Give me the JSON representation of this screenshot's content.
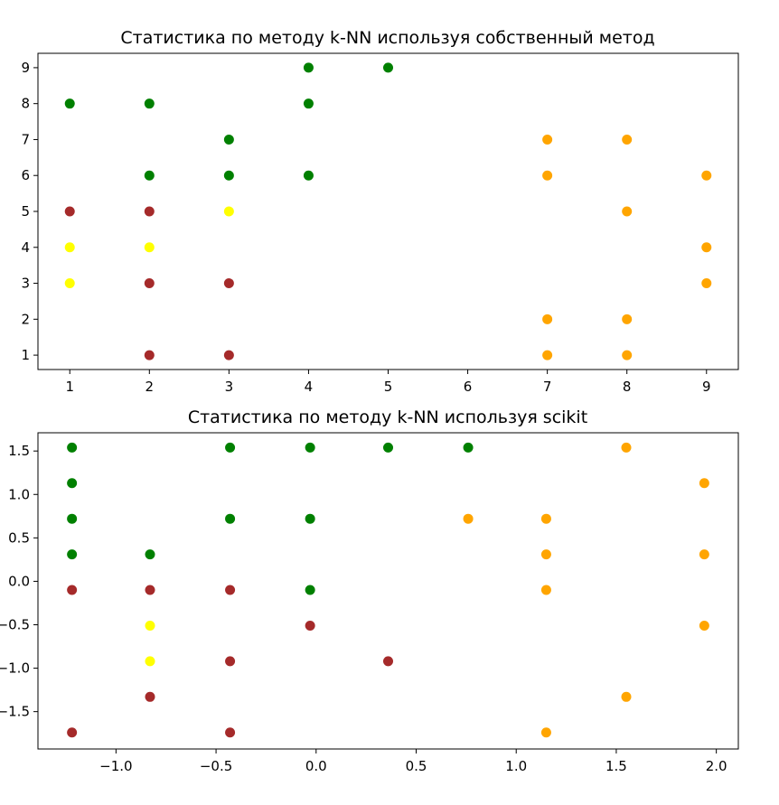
{
  "chart_data": [
    {
      "type": "scatter",
      "title": "Статистика по методу k-NN используя собственный метод",
      "xlabel": "",
      "ylabel": "",
      "xlim": [
        0.6,
        9.4
      ],
      "ylim": [
        0.6,
        9.4
      ],
      "x_ticks": [
        "1",
        "2",
        "3",
        "4",
        "5",
        "6",
        "7",
        "8",
        "9"
      ],
      "y_ticks": [
        "1",
        "2",
        "3",
        "4",
        "5",
        "6",
        "7",
        "8",
        "9"
      ],
      "grid": false,
      "points": [
        {
          "x": 1,
          "y": 8,
          "color": "#008000"
        },
        {
          "x": 2,
          "y": 8,
          "color": "#008000"
        },
        {
          "x": 2,
          "y": 6,
          "color": "#008000"
        },
        {
          "x": 3,
          "y": 7,
          "color": "#008000"
        },
        {
          "x": 3,
          "y": 6,
          "color": "#008000"
        },
        {
          "x": 4,
          "y": 9,
          "color": "#008000"
        },
        {
          "x": 4,
          "y": 8,
          "color": "#008000"
        },
        {
          "x": 4,
          "y": 6,
          "color": "#008000"
        },
        {
          "x": 5,
          "y": 9,
          "color": "#008000"
        },
        {
          "x": 1,
          "y": 5,
          "color": "#a52a2a"
        },
        {
          "x": 2,
          "y": 5,
          "color": "#a52a2a"
        },
        {
          "x": 2,
          "y": 3,
          "color": "#a52a2a"
        },
        {
          "x": 2,
          "y": 1,
          "color": "#a52a2a"
        },
        {
          "x": 3,
          "y": 3,
          "color": "#a52a2a"
        },
        {
          "x": 3,
          "y": 1,
          "color": "#a52a2a"
        },
        {
          "x": 1,
          "y": 4,
          "color": "#ffff00"
        },
        {
          "x": 1,
          "y": 3,
          "color": "#ffff00"
        },
        {
          "x": 2,
          "y": 4,
          "color": "#ffff00"
        },
        {
          "x": 3,
          "y": 5,
          "color": "#ffff00"
        },
        {
          "x": 7,
          "y": 7,
          "color": "#ffa500"
        },
        {
          "x": 7,
          "y": 6,
          "color": "#ffa500"
        },
        {
          "x": 7,
          "y": 2,
          "color": "#ffa500"
        },
        {
          "x": 7,
          "y": 1,
          "color": "#ffa500"
        },
        {
          "x": 8,
          "y": 7,
          "color": "#ffa500"
        },
        {
          "x": 8,
          "y": 5,
          "color": "#ffa500"
        },
        {
          "x": 8,
          "y": 2,
          "color": "#ffa500"
        },
        {
          "x": 8,
          "y": 1,
          "color": "#ffa500"
        },
        {
          "x": 9,
          "y": 6,
          "color": "#ffa500"
        },
        {
          "x": 9,
          "y": 4,
          "color": "#ffa500"
        },
        {
          "x": 9,
          "y": 3,
          "color": "#ffa500"
        }
      ]
    },
    {
      "type": "scatter",
      "title": "Статистика по методу k-NN используя scikit",
      "xlabel": "",
      "ylabel": "",
      "xlim": [
        -1.39,
        2.11
      ],
      "ylim": [
        -1.93,
        1.71
      ],
      "x_ticks": [
        "−1.0",
        "−0.5",
        "0.0",
        "0.5",
        "1.0",
        "1.5",
        "2.0"
      ],
      "y_ticks": [
        "1.5",
        "1.0",
        "0.5",
        "0.0",
        "−0.5",
        "−1.0",
        "−1.5"
      ],
      "grid": false,
      "points": [
        {
          "x": -1.22,
          "y": 1.54,
          "color": "#008000"
        },
        {
          "x": -1.22,
          "y": 1.13,
          "color": "#008000"
        },
        {
          "x": -1.22,
          "y": 0.72,
          "color": "#008000"
        },
        {
          "x": -1.22,
          "y": 0.31,
          "color": "#008000"
        },
        {
          "x": -0.83,
          "y": 0.31,
          "color": "#008000"
        },
        {
          "x": -0.43,
          "y": 1.54,
          "color": "#008000"
        },
        {
          "x": -0.43,
          "y": 0.72,
          "color": "#008000"
        },
        {
          "x": -0.03,
          "y": 1.54,
          "color": "#008000"
        },
        {
          "x": -0.03,
          "y": 0.72,
          "color": "#008000"
        },
        {
          "x": -0.03,
          "y": -0.1,
          "color": "#008000"
        },
        {
          "x": 0.36,
          "y": 1.54,
          "color": "#008000"
        },
        {
          "x": 0.76,
          "y": 1.54,
          "color": "#008000"
        },
        {
          "x": -1.22,
          "y": -0.1,
          "color": "#a52a2a"
        },
        {
          "x": -1.22,
          "y": -1.74,
          "color": "#a52a2a"
        },
        {
          "x": -0.83,
          "y": -0.1,
          "color": "#a52a2a"
        },
        {
          "x": -0.83,
          "y": -1.33,
          "color": "#a52a2a"
        },
        {
          "x": -0.43,
          "y": -0.1,
          "color": "#a52a2a"
        },
        {
          "x": -0.43,
          "y": -0.92,
          "color": "#a52a2a"
        },
        {
          "x": -0.43,
          "y": -1.74,
          "color": "#a52a2a"
        },
        {
          "x": -0.03,
          "y": -0.51,
          "color": "#a52a2a"
        },
        {
          "x": 0.36,
          "y": -0.92,
          "color": "#a52a2a"
        },
        {
          "x": -0.83,
          "y": -0.51,
          "color": "#ffff00"
        },
        {
          "x": -0.83,
          "y": -0.92,
          "color": "#ffff00"
        },
        {
          "x": 0.76,
          "y": 0.72,
          "color": "#ffa500"
        },
        {
          "x": 1.15,
          "y": 0.72,
          "color": "#ffa500"
        },
        {
          "x": 1.15,
          "y": 0.31,
          "color": "#ffa500"
        },
        {
          "x": 1.15,
          "y": -0.1,
          "color": "#ffa500"
        },
        {
          "x": 1.15,
          "y": -1.74,
          "color": "#ffa500"
        },
        {
          "x": 1.55,
          "y": 1.54,
          "color": "#ffa500"
        },
        {
          "x": 1.55,
          "y": -1.33,
          "color": "#ffa500"
        },
        {
          "x": 1.94,
          "y": 1.13,
          "color": "#ffa500"
        },
        {
          "x": 1.94,
          "y": 0.31,
          "color": "#ffa500"
        },
        {
          "x": 1.94,
          "y": -0.51,
          "color": "#ffa500"
        }
      ]
    }
  ]
}
